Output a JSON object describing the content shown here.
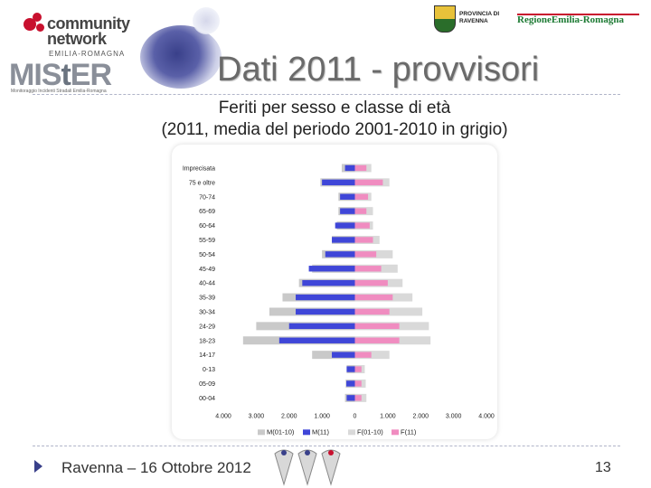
{
  "header": {
    "community_logo_text": [
      "community",
      "network"
    ],
    "community_logo_sub": "EMILIA-ROMAGNA",
    "mister_logo": {
      "part1": "MIS",
      "part2": "t",
      "part3": "ER"
    },
    "mister_tag": "Monitoraggio   Incidenti   Stradali   Emilia-Romagna",
    "provincia_text": [
      "PROVINCIA DI",
      "RAVENNA"
    ],
    "regione_text": "RegioneEmilia-Romagna",
    "slide_title": "Dati 2011 - provvisori"
  },
  "subtitle": [
    "Feriti per sesso e classe di età",
    "(2011, media del periodo 2001-2010 in grigio)"
  ],
  "footer": {
    "text": "Ravenna – 16 Ottobre 2012",
    "page_number": "13"
  },
  "colors": {
    "male_2011": "#3f46d8",
    "female_2011": "#f08cc0",
    "avg_male": "#c9c9c9",
    "avg_female": "#d9d9d9",
    "accent": "#39408a"
  },
  "chart_data": {
    "type": "bar",
    "orientation": "horizontal-population-pyramid",
    "categories": [
      "Imprecisata",
      "75 e oltre",
      "70-74",
      "65-69",
      "60-64",
      "55-59",
      "50-54",
      "45-49",
      "40-44",
      "35-39",
      "30-34",
      "24-29",
      "18-23",
      "14-17",
      "0-13",
      "05-09",
      "00-04"
    ],
    "category_labels": [
      "Imprecisata",
      "75 e oltre",
      "70-74",
      "65-69",
      "60-64",
      "55-59",
      "50-54",
      "45-49",
      "40-44",
      "35-39",
      "30-34",
      "24-29",
      "18-23",
      "14-17",
      "0-13",
      "05-09",
      "00-04"
    ],
    "series": [
      {
        "name": "M(01-10)",
        "values": [
          -400,
          -1050,
          -500,
          -500,
          -550,
          -700,
          -1000,
          -1300,
          -1700,
          -2200,
          -2600,
          -3000,
          -3400,
          -1300,
          -250,
          -280,
          -300
        ]
      },
      {
        "name": "M(11)",
        "values": [
          -300,
          -1000,
          -450,
          -450,
          -600,
          -700,
          -900,
          -1400,
          -1600,
          -1800,
          -1800,
          -2000,
          -2300,
          -700,
          -250,
          -260,
          -250
        ]
      },
      {
        "name": "F(01-10)",
        "values": [
          500,
          1050,
          500,
          550,
          550,
          750,
          1150,
          1300,
          1450,
          1750,
          2050,
          2250,
          2300,
          1050,
          300,
          330,
          350
        ]
      },
      {
        "name": "F(11)",
        "values": [
          350,
          850,
          400,
          350,
          450,
          550,
          650,
          800,
          1000,
          1150,
          1050,
          1350,
          1350,
          500,
          200,
          200,
          200
        ]
      }
    ],
    "x_ticks": [
      -4000,
      -3000,
      -2000,
      -1000,
      0,
      1000,
      2000,
      3000,
      4000
    ],
    "x_tick_labels": [
      "4.000",
      "3.000",
      "2.000",
      "1.000",
      "0",
      "1.000",
      "2.000",
      "3.000",
      "4.000"
    ],
    "xlim": [
      -4000,
      4000
    ],
    "legend": [
      "M(01-10)",
      "M(11)",
      "F(01-10)",
      "F(11)"
    ],
    "legend_position": "bottom",
    "grid": false
  }
}
